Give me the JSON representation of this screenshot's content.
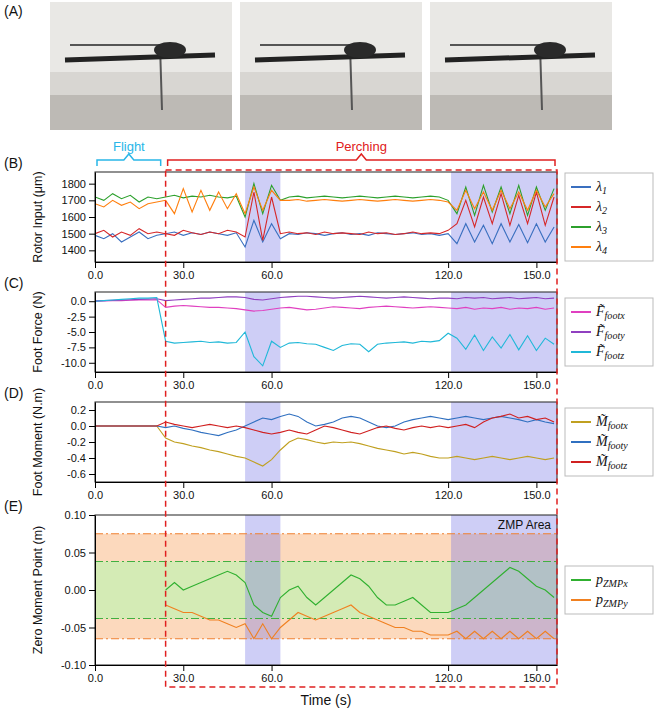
{
  "image_panel": {
    "label": "(A)"
  },
  "chart_data": [
    {
      "type": "line",
      "panel": "(B)",
      "y_label": "Rotor Input (μm)",
      "legend": "right",
      "grid": false,
      "xlim": [
        0,
        157
      ],
      "xticks": [
        {
          "value": 0,
          "label": "0.0"
        },
        {
          "value": 30,
          "label": "30.0"
        },
        {
          "value": 60,
          "label": "60.0"
        },
        {
          "value": 120,
          "label": "120.0"
        },
        {
          "value": 150,
          "label": "150.0"
        }
      ],
      "ylim": [
        1330,
        1870
      ],
      "yticks": [
        1400,
        1500,
        1600,
        1700,
        1800
      ],
      "phases": [
        {
          "label": "Flight",
          "range": [
            0,
            23
          ],
          "color": "#29b6e8"
        },
        {
          "label": "Perching",
          "range": [
            24,
            157
          ],
          "color": "#e02020",
          "line_style": "dashed"
        }
      ],
      "highlights": [
        [
          51,
          63
        ],
        [
          121,
          157
        ]
      ],
      "x": [
        0,
        3,
        6,
        9,
        12,
        15,
        18,
        21,
        24,
        27,
        30,
        33,
        36,
        39,
        42,
        45,
        48,
        51,
        54,
        57,
        60,
        63,
        66,
        69,
        72,
        75,
        78,
        81,
        84,
        87,
        90,
        93,
        96,
        99,
        102,
        105,
        108,
        111,
        114,
        117,
        120,
        123,
        126,
        129,
        132,
        135,
        138,
        141,
        144,
        147,
        150,
        153,
        156
      ],
      "series": [
        {
          "name": "λ1",
          "color": "#3a6fbf",
          "values": [
            1490,
            1470,
            1500,
            1450,
            1480,
            1510,
            1470,
            1490,
            1500,
            1510,
            1490,
            1505,
            1495,
            1510,
            1500,
            1490,
            1505,
            1420,
            1580,
            1450,
            1560,
            1470,
            1500,
            1495,
            1505,
            1500,
            1490,
            1500,
            1505,
            1495,
            1500,
            1490,
            1505,
            1500,
            1495,
            1500,
            1505,
            1495,
            1500,
            1490,
            1500,
            1440,
            1560,
            1450,
            1550,
            1440,
            1560,
            1450,
            1555,
            1445,
            1560,
            1450,
            1540
          ]
        },
        {
          "name": "λ2",
          "color": "#d62728",
          "values": [
            1500,
            1520,
            1480,
            1510,
            1490,
            1530,
            1500,
            1510,
            1500,
            1490,
            1520,
            1505,
            1495,
            1510,
            1500,
            1520,
            1510,
            1480,
            1750,
            1460,
            1720,
            1500,
            1510,
            1500,
            1505,
            1495,
            1510,
            1500,
            1505,
            1500,
            1495,
            1510,
            1500,
            1505,
            1495,
            1500,
            1510,
            1500,
            1505,
            1500,
            1520,
            1560,
            1700,
            1540,
            1720,
            1560,
            1740,
            1550,
            1730,
            1560,
            1750,
            1550,
            1720
          ]
        },
        {
          "name": "λ3",
          "color": "#2ca02c",
          "values": [
            1720,
            1700,
            1740,
            1710,
            1730,
            1690,
            1720,
            1710,
            1720,
            1730,
            1715,
            1725,
            1720,
            1730,
            1720,
            1715,
            1725,
            1600,
            1800,
            1620,
            1790,
            1700,
            1720,
            1725,
            1715,
            1720,
            1725,
            1720,
            1715,
            1720,
            1725,
            1720,
            1715,
            1720,
            1725,
            1720,
            1715,
            1720,
            1725,
            1720,
            1700,
            1620,
            1780,
            1610,
            1790,
            1630,
            1780,
            1620,
            1790,
            1610,
            1780,
            1640,
            1770
          ]
        },
        {
          "name": "λ4",
          "color": "#ff7f0e",
          "values": [
            1680,
            1660,
            1700,
            1670,
            1690,
            1650,
            1680,
            1690,
            1700,
            1620,
            1770,
            1630,
            1760,
            1640,
            1750,
            1650,
            1740,
            1620,
            1780,
            1640,
            1760,
            1700,
            1700,
            1705,
            1695,
            1700,
            1705,
            1700,
            1695,
            1700,
            1705,
            1700,
            1695,
            1700,
            1705,
            1700,
            1695,
            1700,
            1705,
            1700,
            1690,
            1640,
            1760,
            1650,
            1750,
            1640,
            1760,
            1650,
            1750,
            1640,
            1760,
            1660,
            1740
          ]
        }
      ]
    },
    {
      "type": "line",
      "panel": "(C)",
      "y_label": "Foot Force (N)",
      "legend": "right",
      "grid": false,
      "xlim": [
        0,
        157
      ],
      "xticks": [
        {
          "value": 0,
          "label": "0.0"
        },
        {
          "value": 30,
          "label": "30.0"
        },
        {
          "value": 60,
          "label": "60.0"
        },
        {
          "value": 120,
          "label": "120.0"
        },
        {
          "value": 150,
          "label": "150.0"
        }
      ],
      "ylim": [
        -11.5,
        1.5
      ],
      "yticks": [
        {
          "value": 0,
          "label": "0.0"
        },
        -2.5,
        {
          "value": -5,
          "label": "-5.0"
        },
        -7.5,
        {
          "value": -10,
          "label": "-10.0"
        }
      ],
      "highlights": [
        [
          51,
          63
        ],
        [
          121,
          157
        ]
      ],
      "x": [
        0,
        3,
        6,
        9,
        12,
        15,
        18,
        21,
        24,
        27,
        30,
        33,
        36,
        39,
        42,
        45,
        48,
        51,
        54,
        57,
        60,
        63,
        66,
        69,
        72,
        75,
        78,
        81,
        84,
        87,
        90,
        93,
        96,
        99,
        102,
        105,
        108,
        111,
        114,
        117,
        120,
        123,
        126,
        129,
        132,
        135,
        138,
        141,
        144,
        147,
        150,
        153,
        156
      ],
      "series": [
        {
          "name": "F̃footx",
          "color": "#e040c0",
          "values": [
            0.0,
            0.05,
            0.1,
            0.1,
            0.15,
            0.2,
            0.2,
            0.25,
            -1.0,
            -0.8,
            -0.7,
            -0.8,
            -0.9,
            -1.0,
            -1.0,
            -1.1,
            -1.2,
            -1.4,
            -1.6,
            -1.5,
            -1.3,
            -1.1,
            -1.0,
            -1.2,
            -1.4,
            -1.3,
            -1.1,
            -0.9,
            -1.0,
            -1.1,
            -1.2,
            -1.0,
            -0.9,
            -0.8,
            -0.9,
            -1.0,
            -1.1,
            -1.0,
            -0.9,
            -1.0,
            -1.1,
            -1.2,
            -1.0,
            -1.3,
            -1.1,
            -1.2,
            -1.0,
            -1.3,
            -1.1,
            -1.2,
            -1.0,
            -1.3,
            -1.1
          ]
        },
        {
          "name": "F̃footy",
          "color": "#9040c0",
          "values": [
            0.05,
            0.1,
            0.15,
            0.2,
            0.25,
            0.3,
            0.35,
            0.4,
            0.1,
            0.2,
            0.3,
            0.4,
            0.5,
            0.5,
            0.6,
            0.7,
            0.7,
            0.6,
            0.3,
            0.2,
            0.4,
            0.6,
            0.7,
            0.8,
            0.8,
            0.7,
            0.6,
            0.5,
            0.6,
            0.7,
            0.8,
            0.7,
            0.6,
            0.5,
            0.6,
            0.7,
            0.6,
            0.5,
            0.4,
            0.5,
            0.5,
            0.4,
            0.6,
            0.5,
            0.6,
            0.4,
            0.5,
            0.6,
            0.4,
            0.5,
            0.6,
            0.4,
            0.5
          ]
        },
        {
          "name": "F̃footz",
          "color": "#20b8d8",
          "values": [
            0.0,
            0.1,
            0.2,
            0.3,
            0.4,
            0.5,
            0.5,
            0.6,
            -6.5,
            -6.8,
            -6.7,
            -6.6,
            -6.5,
            -6.7,
            -6.6,
            -6.8,
            -6.7,
            -5.0,
            -9.0,
            -10.5,
            -6.5,
            -7.5,
            -6.8,
            -6.7,
            -6.9,
            -7.0,
            -7.5,
            -8.0,
            -7.2,
            -6.9,
            -7.0,
            -8.2,
            -7.0,
            -6.8,
            -6.7,
            -6.6,
            -6.8,
            -6.5,
            -6.6,
            -6.4,
            -5.2,
            -6.0,
            -7.8,
            -5.5,
            -8.0,
            -5.8,
            -7.6,
            -5.4,
            -7.9,
            -5.6,
            -8.0,
            -6.0,
            -7.0
          ]
        }
      ]
    },
    {
      "type": "line",
      "panel": "(D)",
      "y_label": "Foot Moment (N.m)",
      "legend": "right",
      "grid": false,
      "xlim": [
        0,
        157
      ],
      "xticks": [
        {
          "value": 0,
          "label": "0.0"
        },
        {
          "value": 30,
          "label": "30.0"
        },
        {
          "value": 60,
          "label": "60.0"
        },
        {
          "value": 120,
          "label": "120.0"
        },
        {
          "value": 150,
          "label": "150.0"
        }
      ],
      "ylim": [
        -0.7,
        0.3
      ],
      "yticks": [
        0.2,
        {
          "value": 0,
          "label": "0.0"
        },
        -0.2,
        -0.4,
        -0.6
      ],
      "highlights": [
        [
          51,
          63
        ],
        [
          121,
          157
        ]
      ],
      "x": [
        0,
        3,
        6,
        9,
        12,
        15,
        18,
        21,
        24,
        27,
        30,
        33,
        36,
        39,
        42,
        45,
        48,
        51,
        54,
        57,
        60,
        63,
        66,
        69,
        72,
        75,
        78,
        81,
        84,
        87,
        90,
        93,
        96,
        99,
        102,
        105,
        108,
        111,
        114,
        117,
        120,
        123,
        126,
        129,
        132,
        135,
        138,
        141,
        144,
        147,
        150,
        153,
        156
      ],
      "series": [
        {
          "name": "M̃footx",
          "color": "#c0a020",
          "values": [
            0,
            0,
            0,
            0,
            0,
            0,
            0,
            0,
            -0.15,
            -0.2,
            -0.22,
            -0.25,
            -0.27,
            -0.3,
            -0.32,
            -0.35,
            -0.38,
            -0.4,
            -0.45,
            -0.5,
            -0.42,
            -0.3,
            -0.2,
            -0.15,
            -0.17,
            -0.2,
            -0.22,
            -0.2,
            -0.21,
            -0.2,
            -0.22,
            -0.25,
            -0.28,
            -0.3,
            -0.32,
            -0.35,
            -0.33,
            -0.35,
            -0.38,
            -0.4,
            -0.4,
            -0.38,
            -0.4,
            -0.42,
            -0.4,
            -0.38,
            -0.4,
            -0.42,
            -0.4,
            -0.38,
            -0.4,
            -0.42,
            -0.4
          ]
        },
        {
          "name": "M̃footy",
          "color": "#3070c0",
          "values": [
            0,
            0,
            0,
            0,
            0,
            0,
            0,
            0,
            -0.02,
            0.0,
            -0.03,
            -0.05,
            -0.08,
            -0.1,
            -0.12,
            -0.08,
            -0.05,
            0.0,
            0.05,
            0.1,
            0.08,
            0.12,
            0.15,
            0.12,
            0.05,
            0.0,
            0.02,
            0.05,
            0.1,
            0.12,
            0.1,
            0.05,
            0.0,
            -0.02,
            0.0,
            0.05,
            0.08,
            0.1,
            0.12,
            0.1,
            0.08,
            0.1,
            0.12,
            0.1,
            0.08,
            0.1,
            0.12,
            0.1,
            0.08,
            0.05,
            0.08,
            0.05,
            0.03
          ]
        },
        {
          "name": "M̃footz",
          "color": "#d02020",
          "values": [
            0,
            0,
            0,
            0,
            0,
            0,
            0,
            0,
            0.05,
            0.02,
            0.0,
            -0.02,
            0.0,
            0.02,
            0.0,
            -0.02,
            0.0,
            -0.02,
            -0.05,
            -0.08,
            -0.1,
            -0.08,
            -0.05,
            -0.08,
            -0.1,
            -0.05,
            0.0,
            -0.02,
            -0.05,
            -0.08,
            -0.1,
            -0.06,
            -0.02,
            0.0,
            -0.03,
            -0.05,
            -0.02,
            0.0,
            -0.02,
            0.0,
            -0.02,
            0.0,
            0.02,
            -0.02,
            0.05,
            0.1,
            0.12,
            0.15,
            0.1,
            0.12,
            0.08,
            0.1,
            0.05
          ]
        }
      ]
    },
    {
      "type": "line",
      "panel": "(E)",
      "y_label": "Zero Moment Point (m)",
      "x_label": "Time (s)",
      "legend": "right",
      "grid": false,
      "xlim": [
        0,
        157
      ],
      "xticks": [
        {
          "value": 0,
          "label": "0.0"
        },
        {
          "value": 30,
          "label": "30.0"
        },
        {
          "value": 60,
          "label": "60.0"
        },
        {
          "value": 120,
          "label": "120.0"
        },
        {
          "value": 150,
          "label": "150.0"
        }
      ],
      "ylim": [
        -0.1,
        0.1
      ],
      "yticks": [
        {
          "value": 0.1,
          "label": "0.10"
        },
        0.05,
        {
          "value": 0,
          "label": "0.00"
        },
        -0.05,
        {
          "value": -0.1,
          "label": "-0.10"
        }
      ],
      "highlights": [
        [
          51,
          63
        ],
        [
          121,
          157
        ]
      ],
      "zmp_area": {
        "label": "ZMP Area",
        "outer": [
          -0.065,
          0.075
        ],
        "inner": [
          -0.038,
          0.038
        ]
      },
      "x": [
        0,
        3,
        6,
        9,
        12,
        15,
        18,
        21,
        24,
        27,
        30,
        33,
        36,
        39,
        42,
        45,
        48,
        51,
        54,
        57,
        60,
        63,
        66,
        69,
        72,
        75,
        78,
        81,
        84,
        87,
        90,
        93,
        96,
        99,
        102,
        105,
        108,
        111,
        114,
        117,
        120,
        123,
        126,
        129,
        132,
        135,
        138,
        141,
        144,
        147,
        150,
        153,
        156
      ],
      "series": [
        {
          "name": "pZMPx",
          "color": "#30b030",
          "values": [
            null,
            null,
            null,
            null,
            null,
            null,
            null,
            null,
            0.0,
            0.01,
            0.0,
            0.005,
            0.01,
            0.015,
            0.02,
            0.025,
            0.02,
            0.01,
            -0.02,
            -0.03,
            -0.035,
            -0.01,
            0.0,
            0.005,
            -0.01,
            -0.02,
            -0.01,
            0.0,
            0.01,
            0.02,
            0.015,
            0.005,
            -0.01,
            -0.02,
            -0.02,
            -0.015,
            -0.01,
            -0.02,
            -0.03,
            -0.03,
            -0.03,
            -0.025,
            -0.02,
            -0.01,
            0.0,
            0.01,
            0.02,
            0.03,
            0.025,
            0.015,
            0.005,
            0.0,
            -0.01
          ]
        },
        {
          "name": "pZMPy",
          "color": "#f08020",
          "values": [
            null,
            null,
            null,
            null,
            null,
            null,
            null,
            null,
            -0.02,
            -0.025,
            -0.03,
            -0.03,
            -0.035,
            -0.04,
            -0.04,
            -0.045,
            -0.05,
            -0.045,
            -0.065,
            -0.045,
            -0.065,
            -0.05,
            -0.04,
            -0.03,
            -0.035,
            -0.04,
            -0.035,
            -0.03,
            -0.025,
            -0.02,
            -0.03,
            -0.035,
            -0.04,
            -0.045,
            -0.05,
            -0.05,
            -0.055,
            -0.055,
            -0.06,
            -0.06,
            -0.06,
            -0.055,
            -0.065,
            -0.055,
            -0.065,
            -0.055,
            -0.065,
            -0.055,
            -0.065,
            -0.055,
            -0.065,
            -0.055,
            -0.065
          ]
        }
      ]
    }
  ]
}
